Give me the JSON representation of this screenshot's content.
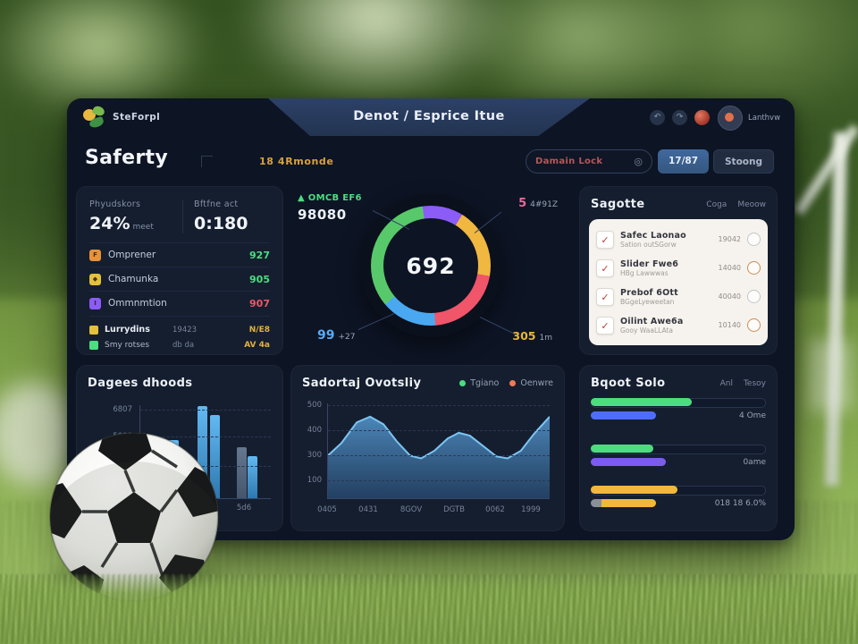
{
  "glyphs": {
    "undo": "↶",
    "redo": "↷",
    "search": "◎",
    "up_arrow": "▲",
    "check": "✓"
  },
  "topbar": {
    "logo_text": "SteForpl",
    "title": "Denot / Esprice Itue",
    "user_name": "Lanthvw"
  },
  "toolbar": {
    "page_title": "Saferty",
    "page_subtitle": "18 4Rmonde",
    "search_value": "Damain Lock",
    "count_button_label": "17/87",
    "settings_button_label": "Stoong"
  },
  "stats_card": {
    "stat_left_label": "Phyudskors",
    "stat_left_value": "24%",
    "stat_left_suffix": "meet",
    "stat_right_label": "Bftfne act",
    "stat_right_value": "0:180",
    "rows": [
      {
        "label": "Omprener",
        "value": "927",
        "value_color": "#4ade80",
        "icon_color": "#e8923a",
        "icon_glyph": "F"
      },
      {
        "label": "Chamunka",
        "value": "905",
        "value_color": "#4ade80",
        "icon_color": "#e3c13c",
        "icon_glyph": "◆"
      },
      {
        "label": "Ommnmtion",
        "value": "907",
        "value_color": "#f0556a",
        "icon_color": "#8b5cf6",
        "icon_glyph": "I"
      }
    ],
    "footer_rows": [
      {
        "icon_color": "#e3c13c",
        "label": "Lurrydins",
        "mid": "19423",
        "value": "N/E8",
        "bold": true
      },
      {
        "icon_color": "#4ade80",
        "label": "Smy rotses",
        "mid": "db da",
        "value": "AV 4a",
        "bold": false
      }
    ]
  },
  "donut": {
    "center_value": "692",
    "top_left_label": "OMCB EF6",
    "top_left_value": "98080",
    "top_right_value": "5",
    "top_right_suffix": "4#91Z",
    "bottom_left_value": "99",
    "bottom_left_suffix": "+27",
    "bottom_right_value": "305",
    "bottom_right_suffix": "1m"
  },
  "tasks_card": {
    "title": "Sagotte",
    "link_1": "Coga",
    "link_2": "Meoow",
    "items": [
      {
        "title": "Safec Laonao",
        "subtitle": "Sation outSGorw",
        "value": "19042",
        "circle": "gray"
      },
      {
        "title": "Slider Fwe6",
        "subtitle": "HBg Lawwwas",
        "value": "14040",
        "circle": "orange"
      },
      {
        "title": "Prebof 6Ott",
        "subtitle": "BGgeLyeweetan",
        "value": "40040",
        "circle": "gray"
      },
      {
        "title": "Oilint Awe6a",
        "subtitle": "Gooy WaaLLAta",
        "value": "10140",
        "circle": "orange"
      }
    ]
  },
  "bar_card": {
    "title": "Dagees dhoods"
  },
  "line_card": {
    "title": "Sadortaj Ovotsliy",
    "legend": [
      {
        "label": "Tgiano",
        "color": "#4ade80"
      },
      {
        "label": "Oenwre",
        "color": "#ef7a55"
      }
    ]
  },
  "progress_card": {
    "title": "Bqoot Solo",
    "link_1": "Anl",
    "link_2": "Tesoy"
  },
  "chart_data": [
    {
      "id": "donut",
      "type": "pie",
      "subtype": "donut",
      "center_value": 692,
      "start_angle": -8,
      "segments": [
        {
          "name": "purple",
          "value": 11,
          "color": "#8b5cf6"
        },
        {
          "name": "amber",
          "value": 19,
          "color": "#f0b741"
        },
        {
          "name": "red",
          "value": 21,
          "color": "#f0556a"
        },
        {
          "name": "blue",
          "value": 15,
          "color": "#4aa8f0"
        },
        {
          "name": "green",
          "value": 34,
          "color": "#58c96a"
        }
      ],
      "callout_values": [
        "98080",
        "5 4#91Z",
        "99 +27",
        "305 1m"
      ]
    },
    {
      "id": "grouped_bars",
      "type": "bar",
      "title": "Dagees dhoods",
      "ylim": [
        0,
        6800
      ],
      "ytick_labels": [
        "6807",
        "5000"
      ],
      "categories": [
        "",
        "346",
        "5d6"
      ],
      "values": [
        [
          4300,
          4250
        ],
        [
          6750,
          6100
        ],
        [
          3750,
          3050
        ]
      ],
      "variants": [
        [
          "blue",
          "blue"
        ],
        [
          "blue",
          "blue"
        ],
        [
          "gray",
          "blue"
        ]
      ]
    },
    {
      "id": "area_trend",
      "type": "area",
      "title": "Sadortaj Ovotsliy",
      "legend": [
        "Tgiano",
        "Oenwre"
      ],
      "ytick_labels": [
        "500",
        "400",
        "300",
        "100"
      ],
      "xtick_labels": [
        "0405",
        "0431",
        "8GOV",
        "DGTB",
        "0062",
        "1999"
      ],
      "points": [
        [
          0,
          55
        ],
        [
          6,
          42
        ],
        [
          13,
          20
        ],
        [
          19,
          14
        ],
        [
          25,
          22
        ],
        [
          31,
          40
        ],
        [
          37,
          55
        ],
        [
          42,
          58
        ],
        [
          48,
          50
        ],
        [
          54,
          37
        ],
        [
          59,
          31
        ],
        [
          64,
          34
        ],
        [
          70,
          45
        ],
        [
          76,
          56
        ],
        [
          81,
          58
        ],
        [
          87,
          50
        ],
        [
          93,
          32
        ],
        [
          100,
          14
        ]
      ],
      "line_color": "#7cc4f2",
      "fill_color_top": "#4f8cc0",
      "fill_color_bottom": "#27496e"
    },
    {
      "id": "progress",
      "type": "bar",
      "subtype": "progress",
      "title": "Bqoot Solo",
      "groups": [
        {
          "main_pct": 58,
          "main_color": "#4ade80",
          "sub_pct": 37,
          "sub_color": "#4f6ef7",
          "label": "4 Ome"
        },
        {
          "main_pct": 36,
          "main_color": "#4ade80",
          "sub_pct": 43,
          "sub_color": "#7c5cf0",
          "label": "0ame"
        },
        {
          "main_pct": 50,
          "main_color": "#f0b93a",
          "sub_pct": 31,
          "sub_color": "#f0b93a",
          "sub_prefix_pct": 6,
          "sub_prefix_color": "#8a8f98",
          "label": "018 18 6.0%"
        }
      ]
    }
  ]
}
